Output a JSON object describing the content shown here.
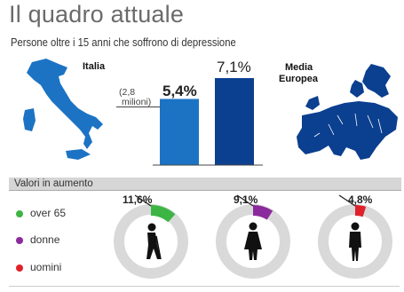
{
  "title": "Il quadro attuale",
  "subtitle": "Persone oltre i 15 anni che soffrono di depressione",
  "colors": {
    "italia_bar": "#1c73c4",
    "europa_bar": "#0b3f8f",
    "ring": "#d9d9d9",
    "over65": "#3cb544",
    "donne": "#8b2a9c",
    "uomini": "#e0212a"
  },
  "chart_data": [
    {
      "type": "bar",
      "categories": [
        "Italia",
        "Media Europea"
      ],
      "values": [
        5.4,
        7.1
      ],
      "value_labels": [
        "5,4%",
        "7,1%"
      ],
      "annotation": "(2,8 milioni)"
    },
    {
      "type": "pie",
      "section_title": "Valori in aumento",
      "categories": [
        "over 65",
        "donne",
        "uomini"
      ],
      "values": [
        11.6,
        9.1,
        4.8
      ],
      "value_labels": [
        "11,6%",
        "9,1%",
        "4,8%"
      ],
      "icons": [
        "elderly-person-icon",
        "woman-icon",
        "man-icon"
      ]
    }
  ],
  "labels": {
    "italia": "Italia",
    "europa_1": "Media",
    "europa_2": "Europea",
    "milioni_1": "(2,8",
    "milioni_2": "milioni)"
  }
}
